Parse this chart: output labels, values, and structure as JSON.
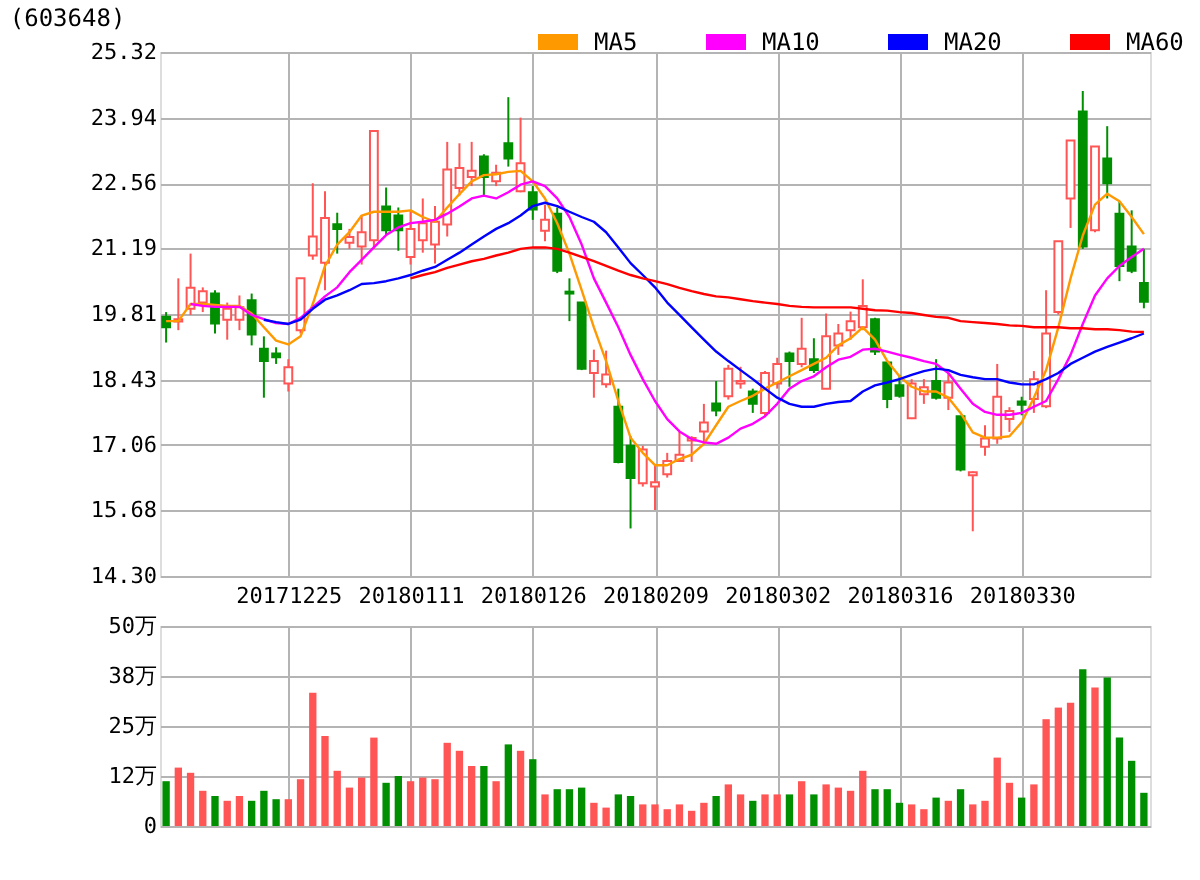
{
  "chart_data": [
    {
      "type": "candlestick",
      "title": "(603648)",
      "categories": [
        null,
        null,
        null,
        null,
        null,
        null,
        null,
        null,
        null,
        null,
        "20171225",
        null,
        null,
        null,
        null,
        null,
        null,
        null,
        null,
        null,
        "20180111",
        null,
        null,
        null,
        null,
        null,
        null,
        null,
        null,
        null,
        "20180126",
        null,
        null,
        null,
        null,
        null,
        null,
        null,
        null,
        null,
        "20180209",
        null,
        null,
        null,
        null,
        null,
        null,
        null,
        null,
        null,
        "20180302",
        null,
        null,
        null,
        null,
        null,
        null,
        null,
        null,
        null,
        "20180316",
        null,
        null,
        null,
        null,
        null,
        null,
        null,
        null,
        null,
        "20180330",
        null,
        null,
        null,
        null,
        null,
        null,
        null,
        null,
        null,
        null
      ],
      "ohlc": [
        [
          19.75,
          19.85,
          19.21,
          19.53
        ],
        [
          19.65,
          20.56,
          19.47,
          19.7
        ],
        [
          19.92,
          21.08,
          19.79,
          20.36
        ],
        [
          20.05,
          20.37,
          19.85,
          20.29
        ],
        [
          20.24,
          20.31,
          19.4,
          19.61
        ],
        [
          19.69,
          20.05,
          19.27,
          19.92
        ],
        [
          19.69,
          20.2,
          19.47,
          19.95
        ],
        [
          20.1,
          20.24,
          19.15,
          19.38
        ],
        [
          19.08,
          19.34,
          18.05,
          18.82
        ],
        [
          18.98,
          19.11,
          18.76,
          18.9
        ],
        [
          18.35,
          18.86,
          18.18,
          18.69
        ],
        [
          19.47,
          20.56,
          19.4,
          20.56
        ],
        [
          21.04,
          22.56,
          20.95,
          21.44
        ],
        [
          20.89,
          22.39,
          20.31,
          21.83
        ],
        [
          21.7,
          21.94,
          21.08,
          21.6
        ],
        [
          21.31,
          21.6,
          21.18,
          21.43
        ],
        [
          21.23,
          21.88,
          20.85,
          21.53
        ],
        [
          21.36,
          23.66,
          21.18,
          23.66
        ],
        [
          22.07,
          22.47,
          21.47,
          21.57
        ],
        [
          21.88,
          22.05,
          21.14,
          21.57
        ],
        [
          21.01,
          21.99,
          20.85,
          21.6
        ],
        [
          21.36,
          22.24,
          21.1,
          21.72
        ],
        [
          21.27,
          22.08,
          20.87,
          21.75
        ],
        [
          21.69,
          23.43,
          21.44,
          22.85
        ],
        [
          22.46,
          23.4,
          22.3,
          22.88
        ],
        [
          22.69,
          23.43,
          22.5,
          22.82
        ],
        [
          23.12,
          23.17,
          22.3,
          22.69
        ],
        [
          22.6,
          22.95,
          22.5,
          22.78
        ],
        [
          23.4,
          24.37,
          22.91,
          23.08
        ],
        [
          22.39,
          23.94,
          22.37,
          22.98
        ],
        [
          22.37,
          22.5,
          21.79,
          22.01
        ],
        [
          21.56,
          22.11,
          21.34,
          21.79
        ],
        [
          21.92,
          22.05,
          20.67,
          20.72
        ],
        [
          20.28,
          20.56,
          19.66,
          20.24
        ],
        [
          20.05,
          20.05,
          18.63,
          18.66
        ],
        [
          18.57,
          19.06,
          18.05,
          18.82
        ],
        [
          18.33,
          19.04,
          18.26,
          18.54
        ],
        [
          17.86,
          18.24,
          16.67,
          16.7
        ],
        [
          17.04,
          17.24,
          15.3,
          16.36
        ],
        [
          16.25,
          17.04,
          16.18,
          16.96
        ],
        [
          16.18,
          16.63,
          15.69,
          16.27
        ],
        [
          16.44,
          16.89,
          16.37,
          16.72
        ],
        [
          16.72,
          17.34,
          16.7,
          16.85
        ],
        [
          17.15,
          17.24,
          16.7,
          17.2
        ],
        [
          17.34,
          17.92,
          17.08,
          17.53
        ],
        [
          17.93,
          18.4,
          17.66,
          17.78
        ],
        [
          18.08,
          18.74,
          18.01,
          18.66
        ],
        [
          18.35,
          18.7,
          18.24,
          18.4
        ],
        [
          18.18,
          18.24,
          17.73,
          17.92
        ],
        [
          17.73,
          18.61,
          17.66,
          18.57
        ],
        [
          18.35,
          18.89,
          18.24,
          18.76
        ],
        [
          18.98,
          19.02,
          18.28,
          18.82
        ],
        [
          18.76,
          19.73,
          18.69,
          19.08
        ],
        [
          18.86,
          19.3,
          18.57,
          18.63
        ],
        [
          18.24,
          19.82,
          18.24,
          19.34
        ],
        [
          19.15,
          19.6,
          18.95,
          19.4
        ],
        [
          19.47,
          19.86,
          19.27,
          19.66
        ],
        [
          19.53,
          20.54,
          19.47,
          19.98
        ],
        [
          19.7,
          19.73,
          18.95,
          19.02
        ],
        [
          18.79,
          18.83,
          17.83,
          18.02
        ],
        [
          18.31,
          18.53,
          18.05,
          18.09
        ],
        [
          17.62,
          18.44,
          17.6,
          18.35
        ],
        [
          18.12,
          18.44,
          17.92,
          18.27
        ],
        [
          18.4,
          18.86,
          18.01,
          18.05
        ],
        [
          18.05,
          18.57,
          17.79,
          18.37
        ],
        [
          17.66,
          17.66,
          16.5,
          16.54
        ],
        [
          16.42,
          16.5,
          15.24,
          16.48
        ],
        [
          17.02,
          17.47,
          16.83,
          17.19
        ],
        [
          17.19,
          18.76,
          17.08,
          18.07
        ],
        [
          17.6,
          17.85,
          17.33,
          17.77
        ],
        [
          17.97,
          18.07,
          17.68,
          17.9
        ],
        [
          18.02,
          18.61,
          17.73,
          18.44
        ],
        [
          17.87,
          20.31,
          17.83,
          19.4
        ],
        [
          19.85,
          21.34,
          19.8,
          21.34
        ],
        [
          22.24,
          23.46,
          21.62,
          23.46
        ],
        [
          24.07,
          24.5,
          21.18,
          21.23
        ],
        [
          21.57,
          23.33,
          21.53,
          23.33
        ],
        [
          23.08,
          23.76,
          22.24,
          22.56
        ],
        [
          21.92,
          22.18,
          20.5,
          20.82
        ],
        [
          21.23,
          21.99,
          20.67,
          20.72
        ],
        [
          20.46,
          21.18,
          19.93,
          20.07
        ]
      ],
      "colors": [
        "#008f00",
        "#ff5555",
        "#ff5555",
        "#ff5555",
        "#008f00",
        "#ff5555",
        "#ff5555",
        "#008f00",
        "#008f00",
        "#008f00",
        "#ff5555",
        "#ff5555",
        "#ff5555",
        "#ff5555",
        "#008f00",
        "#ff5555",
        "#ff5555",
        "#ff5555",
        "#008f00",
        "#008f00",
        "#ff5555",
        "#ff5555",
        "#ff5555",
        "#ff5555",
        "#ff5555",
        "#ff5555",
        "#008f00",
        "#ff5555",
        "#008f00",
        "#ff5555",
        "#008f00",
        "#ff5555",
        "#008f00",
        "#008f00",
        "#008f00",
        "#ff5555",
        "#ff5555",
        "#008f00",
        "#008f00",
        "#ff5555",
        "#ff5555",
        "#ff5555",
        "#ff5555",
        "#ff5555",
        "#ff5555",
        "#008f00",
        "#ff5555",
        "#ff5555",
        "#008f00",
        "#ff5555",
        "#ff5555",
        "#008f00",
        "#ff5555",
        "#008f00",
        "#ff5555",
        "#ff5555",
        "#ff5555",
        "#ff5555",
        "#008f00",
        "#008f00",
        "#008f00",
        "#ff5555",
        "#ff5555",
        "#008f00",
        "#ff5555",
        "#008f00",
        "#ff5555",
        "#ff5555",
        "#ff5555",
        "#ff5555",
        "#008f00",
        "#ff5555",
        "#ff5555",
        "#ff5555",
        "#ff5555",
        "#008f00",
        "#ff5555",
        "#008f00",
        "#008f00",
        "#008f00",
        "#008f00"
      ],
      "series": [
        {
          "name": "MA5",
          "type": "line",
          "color": "#ff9900",
          "values": [
            19.66,
            19.66,
            20.02,
            20.02,
            20.0,
            19.98,
            19.98,
            19.82,
            19.53,
            19.25,
            19.17,
            19.34,
            20.02,
            20.82,
            21.27,
            21.53,
            21.88,
            21.96,
            21.96,
            21.96,
            21.99,
            21.85,
            21.75,
            22.05,
            22.33,
            22.6,
            22.73,
            22.75,
            22.8,
            22.82,
            22.6,
            22.24,
            21.72,
            21.08,
            20.31,
            19.53,
            18.82,
            17.98,
            17.21,
            16.89,
            16.63,
            16.63,
            16.76,
            16.85,
            17.08,
            17.47,
            17.86,
            17.98,
            18.09,
            18.24,
            18.37,
            18.5,
            18.63,
            18.76,
            18.89,
            19.15,
            19.3,
            19.53,
            19.27,
            18.82,
            18.5,
            18.28,
            18.18,
            18.18,
            18.05,
            17.73,
            17.32,
            17.21,
            17.21,
            17.24,
            17.53,
            18.05,
            18.63,
            19.53,
            20.56,
            21.46,
            22.11,
            22.34,
            22.18,
            21.85,
            21.49
          ]
        },
        {
          "name": "MA10",
          "type": "line",
          "color": "#ff00ff",
          "values": [
            null,
            null,
            20.02,
            19.98,
            19.96,
            19.96,
            19.96,
            19.79,
            19.7,
            19.62,
            19.6,
            19.73,
            19.95,
            20.18,
            20.37,
            20.69,
            20.95,
            21.21,
            21.47,
            21.63,
            21.72,
            21.75,
            21.79,
            21.92,
            22.07,
            22.24,
            22.3,
            22.24,
            22.37,
            22.53,
            22.6,
            22.5,
            22.24,
            21.85,
            21.27,
            20.56,
            20.05,
            19.53,
            18.95,
            18.44,
            17.98,
            17.6,
            17.34,
            17.18,
            17.11,
            17.08,
            17.21,
            17.4,
            17.5,
            17.66,
            17.92,
            18.24,
            18.4,
            18.5,
            18.69,
            18.85,
            18.91,
            19.06,
            19.08,
            19.02,
            18.95,
            18.89,
            18.82,
            18.76,
            18.57,
            18.24,
            17.92,
            17.75,
            17.69,
            17.69,
            17.73,
            17.86,
            17.98,
            18.44,
            18.95,
            19.6,
            20.2,
            20.56,
            20.82,
            21.01,
            21.18
          ]
        },
        {
          "name": "MA20",
          "type": "line",
          "color": "#0000ff",
          "values": [
            null,
            null,
            null,
            null,
            null,
            null,
            null,
            null,
            19.69,
            19.64,
            19.6,
            19.69,
            19.92,
            20.11,
            20.2,
            20.31,
            20.44,
            20.46,
            20.5,
            20.56,
            20.63,
            20.72,
            20.8,
            20.95,
            21.1,
            21.27,
            21.44,
            21.6,
            21.72,
            21.88,
            22.08,
            22.15,
            22.08,
            21.96,
            21.85,
            21.75,
            21.53,
            21.21,
            20.88,
            20.63,
            20.37,
            20.05,
            19.79,
            19.53,
            19.27,
            19.02,
            18.82,
            18.63,
            18.44,
            18.24,
            18.05,
            17.92,
            17.86,
            17.86,
            17.92,
            17.96,
            17.98,
            18.18,
            18.31,
            18.37,
            18.44,
            18.53,
            18.61,
            18.66,
            18.63,
            18.53,
            18.48,
            18.44,
            18.44,
            18.37,
            18.33,
            18.33,
            18.44,
            18.57,
            18.76,
            18.89,
            19.02,
            19.12,
            19.21,
            19.3,
            19.4
          ]
        },
        {
          "name": "MA60",
          "type": "line",
          "color": "#ff0000",
          "values": [
            null,
            null,
            null,
            null,
            null,
            null,
            null,
            null,
            null,
            null,
            null,
            null,
            null,
            null,
            null,
            null,
            null,
            null,
            null,
            null,
            20.56,
            20.63,
            20.69,
            20.78,
            20.85,
            20.92,
            20.97,
            21.04,
            21.1,
            21.18,
            21.21,
            21.21,
            21.18,
            21.1,
            21.01,
            20.92,
            20.82,
            20.72,
            20.63,
            20.56,
            20.5,
            20.44,
            20.36,
            20.29,
            20.23,
            20.18,
            20.16,
            20.12,
            20.08,
            20.05,
            20.02,
            19.98,
            19.96,
            19.95,
            19.95,
            19.95,
            19.95,
            19.92,
            19.89,
            19.88,
            19.85,
            19.83,
            19.79,
            19.75,
            19.73,
            19.66,
            19.64,
            19.62,
            19.6,
            19.57,
            19.56,
            19.53,
            19.53,
            19.53,
            19.51,
            19.51,
            19.49,
            19.49,
            19.47,
            19.44,
            19.43
          ]
        }
      ],
      "ylim": [
        14.3,
        25.32
      ],
      "yticks": [
        {
          "value": 14.3,
          "label": "14.30"
        },
        15.68,
        17.06,
        18.43,
        19.81,
        21.19,
        22.56,
        23.94,
        25.32
      ],
      "grid": true,
      "legend": "top right"
    },
    {
      "type": "bar",
      "categories": [
        null,
        null,
        null,
        null,
        null,
        null,
        null,
        null,
        null,
        null,
        "20171225",
        null,
        null,
        null,
        null,
        null,
        null,
        null,
        null,
        null,
        "20180111",
        null,
        null,
        null,
        null,
        null,
        null,
        null,
        null,
        null,
        "20180126",
        null,
        null,
        null,
        null,
        null,
        null,
        null,
        null,
        null,
        "20180209",
        null,
        null,
        null,
        null,
        null,
        null,
        null,
        null,
        null,
        "20180302",
        null,
        null,
        null,
        null,
        null,
        null,
        null,
        null,
        null,
        "20180316",
        null,
        null,
        null,
        null,
        null,
        null,
        null,
        null,
        null,
        "20180330",
        null,
        null,
        null,
        null,
        null,
        null,
        null,
        null,
        null,
        null
      ],
      "values": [
        11.2,
        14.6,
        13.3,
        8.8,
        7.5,
        6.3,
        7.5,
        6.3,
        8.8,
        6.7,
        6.7,
        11.7,
        33.3,
        22.5,
        13.8,
        9.6,
        12.1,
        22.1,
        10.8,
        12.5,
        11.2,
        12.1,
        11.7,
        20.8,
        18.8,
        15.0,
        15.0,
        11.2,
        20.4,
        18.8,
        16.7,
        7.9,
        9.2,
        9.2,
        9.6,
        5.8,
        4.6,
        7.9,
        7.5,
        5.4,
        5.4,
        4.2,
        5.4,
        3.8,
        5.8,
        7.5,
        10.4,
        7.9,
        6.3,
        7.9,
        7.9,
        7.9,
        11.2,
        7.9,
        10.4,
        9.6,
        8.8,
        13.8,
        9.2,
        9.2,
        5.8,
        5.4,
        4.2,
        7.1,
        6.3,
        9.2,
        5.4,
        6.3,
        17.1,
        10.8,
        7.1,
        10.4,
        26.7,
        29.6,
        30.8,
        39.2,
        34.6,
        37.1,
        22.1,
        16.3,
        8.3
      ],
      "colors": [
        "#008f00",
        "#ff5555",
        "#ff5555",
        "#ff5555",
        "#008f00",
        "#ff5555",
        "#ff5555",
        "#008f00",
        "#008f00",
        "#008f00",
        "#ff5555",
        "#ff5555",
        "#ff5555",
        "#ff5555",
        "#ff5555",
        "#ff5555",
        "#ff5555",
        "#ff5555",
        "#008f00",
        "#008f00",
        "#ff5555",
        "#ff5555",
        "#ff5555",
        "#ff5555",
        "#ff5555",
        "#ff5555",
        "#008f00",
        "#ff5555",
        "#008f00",
        "#ff5555",
        "#008f00",
        "#ff5555",
        "#008f00",
        "#008f00",
        "#008f00",
        "#ff5555",
        "#ff5555",
        "#008f00",
        "#008f00",
        "#ff5555",
        "#ff5555",
        "#ff5555",
        "#ff5555",
        "#ff5555",
        "#ff5555",
        "#008f00",
        "#ff5555",
        "#ff5555",
        "#008f00",
        "#ff5555",
        "#ff5555",
        "#008f00",
        "#ff5555",
        "#008f00",
        "#ff5555",
        "#ff5555",
        "#ff5555",
        "#ff5555",
        "#008f00",
        "#008f00",
        "#008f00",
        "#ff5555",
        "#ff5555",
        "#008f00",
        "#ff5555",
        "#008f00",
        "#ff5555",
        "#ff5555",
        "#ff5555",
        "#ff5555",
        "#008f00",
        "#ff5555",
        "#ff5555",
        "#ff5555",
        "#ff5555",
        "#008f00",
        "#ff5555",
        "#008f00",
        "#008f00",
        "#008f00",
        "#008f00"
      ],
      "ylim": [
        0,
        50
      ],
      "yticks": [
        {
          "value": 0,
          "label": "0"
        },
        {
          "value": 12.5,
          "label": "12万"
        },
        {
          "value": 25,
          "label": "25万"
        },
        {
          "value": 37.5,
          "label": "38万"
        },
        {
          "value": 50,
          "label": "50万"
        }
      ],
      "grid": true,
      "tick_labels": "y"
    }
  ]
}
